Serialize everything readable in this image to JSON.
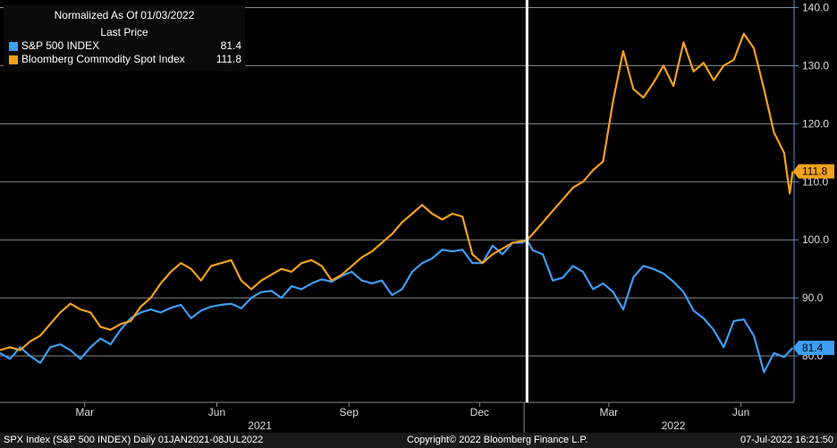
{
  "legend": {
    "title_line1": "Normalized As Of 01/03/2022",
    "title_line2": "Last Price",
    "series": [
      {
        "name": "S&P 500 INDEX",
        "value": "81.4",
        "color": "#3d9df3"
      },
      {
        "name": "Bloomberg Commodity Spot Index",
        "value": "111.8",
        "color": "#f5a11c"
      }
    ]
  },
  "footer": {
    "left": "SPX Index (S&P 500 INDEX)  Daily 01JAN2021-08JUL2022",
    "center": "Copyright© 2022 Bloomberg Finance L.P.",
    "right": "07-Jul-2022 16:21:50"
  },
  "chart_data": {
    "type": "line",
    "normalization_date": "01/03/2022",
    "y_ticks": [
      80,
      90,
      100,
      110,
      120,
      130,
      140
    ],
    "y_tick_labels": [
      "80.0",
      "90.0",
      "100.0",
      "110.0",
      "120.0",
      "130.0",
      "140.0"
    ],
    "ylim": [
      72,
      141
    ],
    "grid": true,
    "legend_position": "top-left",
    "x_axis": {
      "start": "2021-01-01",
      "end": "2022-07-08",
      "month_ticks": [
        {
          "date": "2021-03-01",
          "label": "Mar"
        },
        {
          "date": "2021-06-01",
          "label": "Jun"
        },
        {
          "date": "2021-09-01",
          "label": "Sep"
        },
        {
          "date": "2021-12-01",
          "label": "Dec"
        },
        {
          "date": "2022-03-01",
          "label": "Mar"
        },
        {
          "date": "2022-06-01",
          "label": "Jun"
        }
      ],
      "year_labels": [
        {
          "date": "2021-07-01",
          "label": "2021"
        },
        {
          "date": "2022-04-15",
          "label": "2022"
        }
      ],
      "year_divider": "2022-01-01"
    },
    "reference_line": {
      "date": "2022-01-03",
      "color": "#ffffff"
    },
    "series": [
      {
        "name": "S&P 500 INDEX",
        "color": "#3d9df3",
        "last_value": 81.4,
        "last_label": "81.4",
        "points": [
          [
            "2021-01-01",
            80.5
          ],
          [
            "2021-01-08",
            79.5
          ],
          [
            "2021-01-15",
            81.5
          ],
          [
            "2021-01-22",
            80.0
          ],
          [
            "2021-01-29",
            78.8
          ],
          [
            "2021-02-05",
            81.5
          ],
          [
            "2021-02-12",
            82.0
          ],
          [
            "2021-02-19",
            81.0
          ],
          [
            "2021-02-26",
            79.5
          ],
          [
            "2021-03-05",
            81.5
          ],
          [
            "2021-03-12",
            83.0
          ],
          [
            "2021-03-19",
            82.0
          ],
          [
            "2021-03-26",
            84.5
          ],
          [
            "2021-04-02",
            86.5
          ],
          [
            "2021-04-09",
            87.5
          ],
          [
            "2021-04-16",
            88.0
          ],
          [
            "2021-04-23",
            87.5
          ],
          [
            "2021-04-30",
            88.3
          ],
          [
            "2021-05-07",
            88.8
          ],
          [
            "2021-05-14",
            86.5
          ],
          [
            "2021-05-21",
            87.8
          ],
          [
            "2021-05-28",
            88.5
          ],
          [
            "2021-06-04",
            88.8
          ],
          [
            "2021-06-11",
            89.0
          ],
          [
            "2021-06-18",
            88.2
          ],
          [
            "2021-06-25",
            90.0
          ],
          [
            "2021-07-02",
            91.0
          ],
          [
            "2021-07-09",
            91.2
          ],
          [
            "2021-07-16",
            90.0
          ],
          [
            "2021-07-23",
            92.0
          ],
          [
            "2021-07-30",
            91.5
          ],
          [
            "2021-08-06",
            92.5
          ],
          [
            "2021-08-13",
            93.2
          ],
          [
            "2021-08-20",
            92.8
          ],
          [
            "2021-08-27",
            93.8
          ],
          [
            "2021-09-03",
            94.5
          ],
          [
            "2021-09-10",
            93.0
          ],
          [
            "2021-09-17",
            92.5
          ],
          [
            "2021-09-24",
            93.0
          ],
          [
            "2021-10-01",
            90.5
          ],
          [
            "2021-10-08",
            91.5
          ],
          [
            "2021-10-15",
            94.5
          ],
          [
            "2021-10-22",
            96.0
          ],
          [
            "2021-10-29",
            96.8
          ],
          [
            "2021-11-05",
            98.3
          ],
          [
            "2021-11-12",
            98.0
          ],
          [
            "2021-11-19",
            98.3
          ],
          [
            "2021-11-26",
            96.0
          ],
          [
            "2021-12-03",
            96.0
          ],
          [
            "2021-12-10",
            99.0
          ],
          [
            "2021-12-17",
            97.5
          ],
          [
            "2021-12-24",
            99.5
          ],
          [
            "2021-12-31",
            99.5
          ],
          [
            "2022-01-03",
            100.0
          ],
          [
            "2022-01-07",
            98.2
          ],
          [
            "2022-01-14",
            97.5
          ],
          [
            "2022-01-21",
            93.0
          ],
          [
            "2022-01-28",
            93.5
          ],
          [
            "2022-02-04",
            95.5
          ],
          [
            "2022-02-11",
            94.5
          ],
          [
            "2022-02-18",
            91.5
          ],
          [
            "2022-02-25",
            92.5
          ],
          [
            "2022-03-04",
            91.0
          ],
          [
            "2022-03-11",
            88.0
          ],
          [
            "2022-03-18",
            93.5
          ],
          [
            "2022-03-25",
            95.5
          ],
          [
            "2022-04-01",
            95.0
          ],
          [
            "2022-04-08",
            94.2
          ],
          [
            "2022-04-15",
            92.8
          ],
          [
            "2022-04-22",
            91.0
          ],
          [
            "2022-04-29",
            87.8
          ],
          [
            "2022-05-06",
            86.5
          ],
          [
            "2022-05-13",
            84.5
          ],
          [
            "2022-05-20",
            81.5
          ],
          [
            "2022-05-27",
            86.0
          ],
          [
            "2022-06-03",
            86.3
          ],
          [
            "2022-06-10",
            83.5
          ],
          [
            "2022-06-17",
            77.2
          ],
          [
            "2022-06-24",
            80.5
          ],
          [
            "2022-07-01",
            79.8
          ],
          [
            "2022-07-07",
            81.4
          ]
        ]
      },
      {
        "name": "Bloomberg Commodity Spot Index",
        "color": "#f5a11c",
        "last_value": 111.8,
        "last_label": "111.8",
        "points": [
          [
            "2021-01-01",
            81.0
          ],
          [
            "2021-01-08",
            81.5
          ],
          [
            "2021-01-15",
            81.0
          ],
          [
            "2021-01-22",
            82.5
          ],
          [
            "2021-01-29",
            83.5
          ],
          [
            "2021-02-05",
            85.5
          ],
          [
            "2021-02-12",
            87.5
          ],
          [
            "2021-02-19",
            89.0
          ],
          [
            "2021-02-26",
            88.0
          ],
          [
            "2021-03-05",
            87.5
          ],
          [
            "2021-03-12",
            85.0
          ],
          [
            "2021-03-19",
            84.5
          ],
          [
            "2021-03-26",
            85.5
          ],
          [
            "2021-04-02",
            86.0
          ],
          [
            "2021-04-09",
            88.5
          ],
          [
            "2021-04-16",
            90.0
          ],
          [
            "2021-04-23",
            92.5
          ],
          [
            "2021-04-30",
            94.5
          ],
          [
            "2021-05-07",
            96.0
          ],
          [
            "2021-05-14",
            95.0
          ],
          [
            "2021-05-21",
            93.0
          ],
          [
            "2021-05-28",
            95.5
          ],
          [
            "2021-06-04",
            96.0
          ],
          [
            "2021-06-11",
            96.5
          ],
          [
            "2021-06-18",
            93.0
          ],
          [
            "2021-06-25",
            91.5
          ],
          [
            "2021-07-02",
            93.0
          ],
          [
            "2021-07-09",
            94.0
          ],
          [
            "2021-07-16",
            95.0
          ],
          [
            "2021-07-23",
            94.5
          ],
          [
            "2021-07-30",
            96.0
          ],
          [
            "2021-08-06",
            96.5
          ],
          [
            "2021-08-13",
            95.5
          ],
          [
            "2021-08-20",
            93.0
          ],
          [
            "2021-08-27",
            94.0
          ],
          [
            "2021-09-03",
            95.5
          ],
          [
            "2021-09-10",
            97.0
          ],
          [
            "2021-09-17",
            98.0
          ],
          [
            "2021-09-24",
            99.5
          ],
          [
            "2021-10-01",
            101.0
          ],
          [
            "2021-10-08",
            103.0
          ],
          [
            "2021-10-15",
            104.5
          ],
          [
            "2021-10-22",
            106.0
          ],
          [
            "2021-10-29",
            104.5
          ],
          [
            "2021-11-05",
            103.5
          ],
          [
            "2021-11-12",
            104.5
          ],
          [
            "2021-11-19",
            104.0
          ],
          [
            "2021-11-26",
            97.5
          ],
          [
            "2021-12-03",
            96.0
          ],
          [
            "2021-12-10",
            97.5
          ],
          [
            "2021-12-17",
            98.5
          ],
          [
            "2021-12-24",
            99.5
          ],
          [
            "2021-12-31",
            99.8
          ],
          [
            "2022-01-03",
            100.0
          ],
          [
            "2022-01-07",
            101.0
          ],
          [
            "2022-01-14",
            103.0
          ],
          [
            "2022-01-21",
            105.0
          ],
          [
            "2022-01-28",
            107.0
          ],
          [
            "2022-02-04",
            109.0
          ],
          [
            "2022-02-11",
            110.0
          ],
          [
            "2022-02-18",
            112.0
          ],
          [
            "2022-02-25",
            113.5
          ],
          [
            "2022-03-04",
            124.0
          ],
          [
            "2022-03-11",
            132.5
          ],
          [
            "2022-03-18",
            126.0
          ],
          [
            "2022-03-25",
            124.5
          ],
          [
            "2022-04-01",
            127.0
          ],
          [
            "2022-04-08",
            130.0
          ],
          [
            "2022-04-15",
            126.5
          ],
          [
            "2022-04-22",
            134.0
          ],
          [
            "2022-04-29",
            129.0
          ],
          [
            "2022-05-06",
            130.5
          ],
          [
            "2022-05-13",
            127.5
          ],
          [
            "2022-05-20",
            130.0
          ],
          [
            "2022-05-27",
            131.0
          ],
          [
            "2022-06-03",
            135.5
          ],
          [
            "2022-06-10",
            133.0
          ],
          [
            "2022-06-17",
            126.0
          ],
          [
            "2022-06-24",
            118.5
          ],
          [
            "2022-07-01",
            115.0
          ],
          [
            "2022-07-05",
            108.0
          ],
          [
            "2022-07-07",
            111.8
          ]
        ]
      }
    ]
  }
}
